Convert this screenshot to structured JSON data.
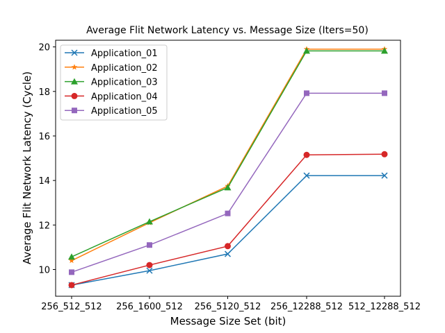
{
  "chart_data": {
    "type": "line",
    "title": "Average Flit Network Latency vs. Message Size (Iters=50)",
    "xlabel": "Message Size Set (bit)",
    "ylabel": "Average Flit Network Latency (Cycle)",
    "categories": [
      "256_512_512",
      "256_1600_512",
      "256_5120_512",
      "256_12288_512",
      "512_12288_512"
    ],
    "ylim": [
      8.8,
      20.3
    ],
    "yticks": [
      10,
      12,
      14,
      16,
      18,
      20
    ],
    "grid": false,
    "legend_position": "top-left",
    "series": [
      {
        "name": "Application_01",
        "color": "#1f77b4",
        "marker": "x",
        "values": [
          9.3,
          9.95,
          10.7,
          14.22,
          14.22
        ]
      },
      {
        "name": "Application_02",
        "color": "#ff7f0e",
        "marker": "star",
        "values": [
          10.4,
          12.1,
          13.75,
          19.9,
          19.9
        ]
      },
      {
        "name": "Application_03",
        "color": "#2ca02c",
        "marker": "triangle",
        "values": [
          10.57,
          12.15,
          13.68,
          19.82,
          19.82
        ]
      },
      {
        "name": "Application_04",
        "color": "#d62728",
        "marker": "circle",
        "values": [
          9.3,
          10.2,
          11.05,
          15.15,
          15.18
        ]
      },
      {
        "name": "Application_05",
        "color": "#9467bd",
        "marker": "square",
        "values": [
          9.88,
          11.1,
          12.52,
          17.92,
          17.92
        ]
      }
    ]
  }
}
